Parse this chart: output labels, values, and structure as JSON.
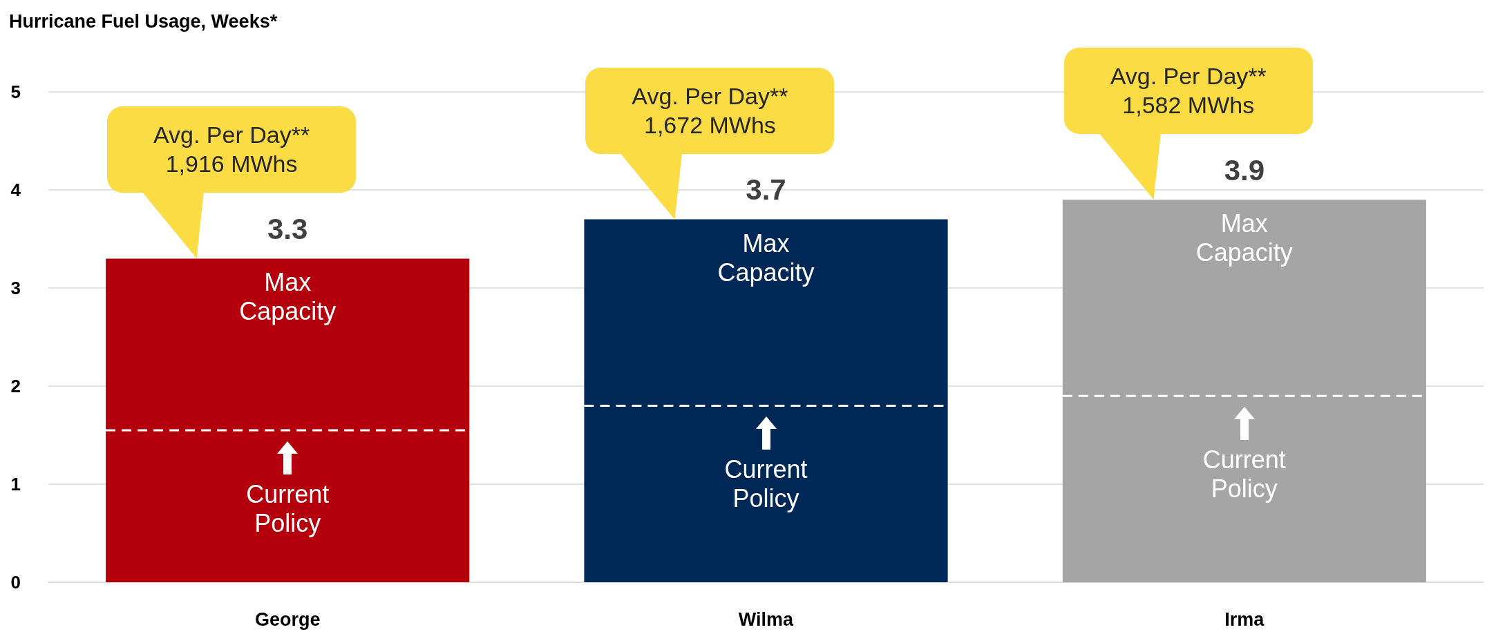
{
  "chart_data": {
    "type": "bar",
    "title": "Hurricane Fuel Usage, Weeks*",
    "categories": [
      "George",
      "Wilma",
      "Irma"
    ],
    "series": [
      {
        "values": [
          3.3,
          3.7,
          3.9
        ],
        "colors": [
          "#b3000c",
          "#002856",
          "#a5a5a5"
        ],
        "value_labels": [
          "3.3",
          "3.7",
          "3.9"
        ]
      }
    ],
    "ref_lines": [
      {
        "axis": "y",
        "value": 1.55,
        "color": "#ffffff",
        "line_style": "dashed"
      },
      {
        "axis": "y",
        "value": 1.8,
        "color": "#ffffff",
        "line_style": "dashed"
      },
      {
        "axis": "y",
        "value": 1.9,
        "color": "#ffffff",
        "line_style": "dashed"
      }
    ],
    "ylim": [
      0,
      5
    ],
    "yticks": [
      0,
      1,
      2,
      3,
      4,
      5
    ],
    "grid": "y",
    "annotations": [
      {
        "text": "Max\nCapacity",
        "x": "George",
        "y": 3.3
      },
      {
        "text": "Max\nCapacity",
        "x": "Wilma",
        "y": 3.7
      },
      {
        "text": "Max\nCapacity",
        "x": "Irma",
        "y": 3.9
      },
      "Current\nPolicy",
      "Current\nPolicy",
      "Current\nPolicy",
      "Avg. Per Day**\n1,916 MWhs",
      "Avg. Per Day**\n1,672 MWhs",
      "Avg. Per Day**\n1,582 MWhs"
    ]
  }
}
